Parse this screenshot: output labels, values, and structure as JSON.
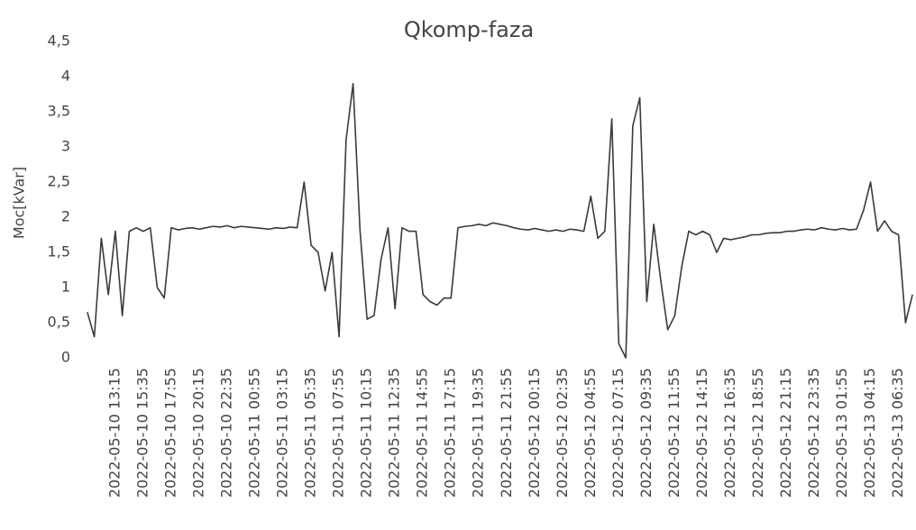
{
  "chart_data": {
    "type": "line",
    "title": "Qkomp-faza",
    "y_label": "Moc[kVar]",
    "categories": [
      null,
      null,
      null,
      null,
      "2022-05-10 13:15",
      null,
      null,
      null,
      "2022-05-10 15:35",
      null,
      null,
      null,
      "2022-05-10 17:55",
      null,
      null,
      null,
      "2022-05-10 20:15",
      null,
      null,
      null,
      "2022-05-10 22:35",
      null,
      null,
      null,
      "2022-05-11 00:55",
      null,
      null,
      null,
      "2022-05-11 03:15",
      null,
      null,
      null,
      "2022-05-11 05:35",
      null,
      null,
      null,
      "2022-05-11 07:55",
      null,
      null,
      null,
      "2022-05-11 10:15",
      null,
      null,
      null,
      "2022-05-11 12:35",
      null,
      null,
      null,
      "2022-05-11 14:55",
      null,
      null,
      null,
      "2022-05-11 17:15",
      null,
      null,
      null,
      "2022-05-11 19:35",
      null,
      null,
      null,
      "2022-05-11 21:55",
      null,
      null,
      null,
      "2022-05-12 00:15",
      null,
      null,
      null,
      "2022-05-12 02:35",
      null,
      null,
      null,
      "2022-05-12 04:55",
      null,
      null,
      null,
      "2022-05-12 07:15",
      null,
      null,
      null,
      "2022-05-12 09:35",
      null,
      null,
      null,
      "2022-05-12 11:55",
      null,
      null,
      null,
      "2022-05-12 14:15",
      null,
      null,
      null,
      "2022-05-12 16:35",
      null,
      null,
      null,
      "2022-05-12 18:55",
      null,
      null,
      null,
      "2022-05-12 21:15",
      null,
      null,
      null,
      "2022-05-12 23:35",
      null,
      null,
      null,
      "2022-05-13 01:55",
      null,
      null,
      null,
      "2022-05-13 04:15",
      null,
      null,
      null,
      "2022-05-13 06:35",
      null,
      null
    ],
    "values": [
      0.65,
      0.3,
      1.7,
      0.9,
      1.8,
      0.6,
      1.8,
      1.85,
      1.8,
      1.85,
      1.0,
      0.85,
      1.85,
      1.82,
      1.84,
      1.85,
      1.83,
      1.85,
      1.87,
      1.86,
      1.88,
      1.85,
      1.87,
      1.86,
      1.85,
      1.84,
      1.83,
      1.85,
      1.84,
      1.86,
      1.85,
      2.5,
      1.6,
      1.5,
      0.95,
      1.5,
      0.3,
      3.1,
      3.9,
      1.8,
      0.55,
      0.6,
      1.4,
      1.85,
      0.7,
      1.85,
      1.8,
      1.8,
      0.9,
      0.8,
      0.75,
      0.85,
      0.85,
      1.85,
      1.87,
      1.88,
      1.9,
      1.88,
      1.92,
      1.9,
      1.88,
      1.85,
      1.83,
      1.82,
      1.84,
      1.82,
      1.8,
      1.82,
      1.8,
      1.83,
      1.82,
      1.8,
      2.3,
      1.7,
      1.8,
      3.4,
      0.2,
      0,
      3.3,
      3.7,
      0.8,
      1.9,
      1.1,
      0.4,
      0.6,
      1.3,
      1.8,
      1.75,
      1.8,
      1.75,
      1.5,
      1.7,
      1.68,
      1.7,
      1.72,
      1.75,
      1.75,
      1.77,
      1.78,
      1.78,
      1.8,
      1.8,
      1.82,
      1.83,
      1.82,
      1.85,
      1.83,
      1.82,
      1.84,
      1.82,
      1.83,
      2.1,
      2.5,
      1.8,
      1.95,
      1.8,
      1.75,
      0.5,
      0.9
    ],
    "color": "#3a3a3a",
    "ylim": [
      0,
      4.5
    ],
    "yticks": [
      0,
      {
        "value": 0.5,
        "label": "0,5"
      },
      1,
      {
        "value": 1.5,
        "label": "1,5"
      },
      2,
      {
        "value": 2.5,
        "label": "2,5"
      },
      3,
      {
        "value": 3.5,
        "label": "3,5"
      },
      4,
      {
        "value": 4.5,
        "label": "4,5"
      }
    ],
    "grid": false
  }
}
